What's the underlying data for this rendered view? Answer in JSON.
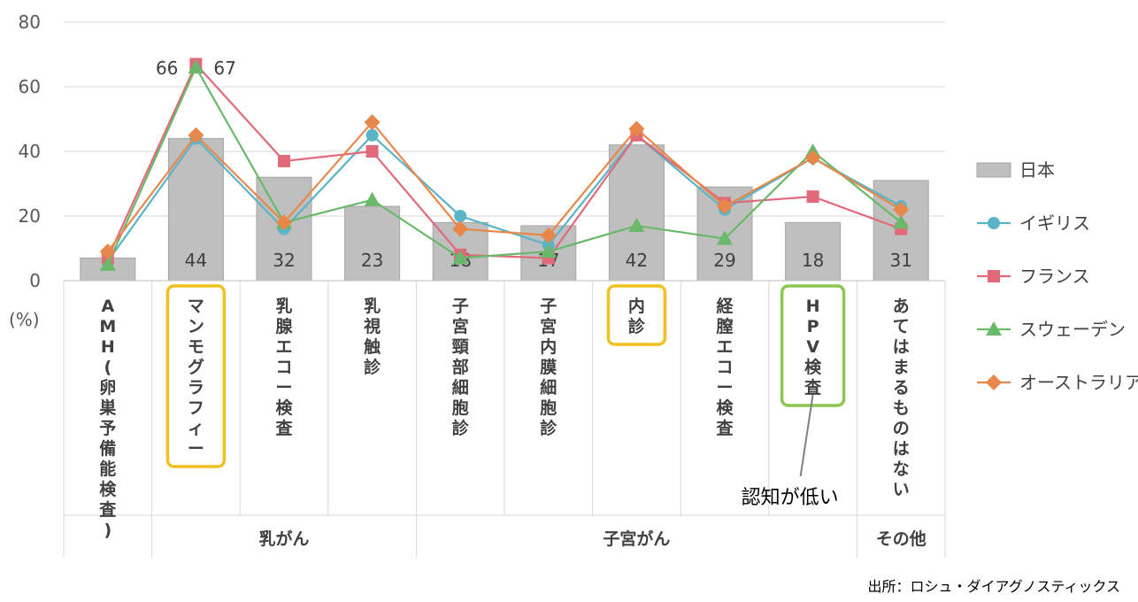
{
  "chart_data": {
    "type": "bar",
    "title": "",
    "ylabel": "(%)",
    "ylim": [
      0,
      80
    ],
    "yticks": [
      0,
      20,
      40,
      60,
      80
    ],
    "categories": [
      "AMH(卵巣予備能検査)",
      "マンモグラフィー",
      "乳腺エコー検査",
      "乳視触診",
      "子宮頸部細胞診",
      "子宮内膜細胞診",
      "内診",
      "経膣エコー検査",
      "HPV検査",
      "あてはまるものはない"
    ],
    "groups": [
      {
        "label": "",
        "span": 1
      },
      {
        "label": "乳がん",
        "span": 3
      },
      {
        "label": "子宮がん",
        "span": 5
      },
      {
        "label": "その他",
        "span": 1
      }
    ],
    "series": [
      {
        "name": "日本",
        "kind": "bar",
        "color": "#bfbfbf",
        "values": [
          7,
          44,
          32,
          23,
          18,
          17,
          42,
          29,
          18,
          31
        ],
        "labels": [
          "7",
          "44",
          "32",
          "23",
          "18",
          "17",
          "42",
          "29",
          "18",
          "31"
        ]
      },
      {
        "name": "イギリス",
        "kind": "line",
        "marker": "circle",
        "color": "#5ab4c8",
        "values": [
          6,
          44,
          16,
          45,
          20,
          11,
          45,
          22,
          38,
          23
        ]
      },
      {
        "name": "フランス",
        "kind": "line",
        "marker": "square",
        "color": "#e06a7a",
        "values": [
          7,
          67,
          37,
          40,
          8,
          7,
          45,
          24,
          26,
          16
        ]
      },
      {
        "name": "スウェーデン",
        "kind": "line",
        "marker": "triangle",
        "color": "#6ab86a",
        "values": [
          5,
          66,
          18,
          25,
          7,
          9,
          17,
          13,
          40,
          18
        ]
      },
      {
        "name": "オーストラリア",
        "kind": "line",
        "marker": "diamond",
        "color": "#e8874a",
        "values": [
          9,
          45,
          18,
          49,
          16,
          14,
          47,
          23,
          38,
          22
        ]
      }
    ],
    "annotations": [
      {
        "text": "66",
        "category": "マンモグラフィー",
        "series": "スウェーデン"
      },
      {
        "text": "67",
        "category": "マンモグラフィー",
        "series": "フランス"
      }
    ],
    "highlight_boxes": [
      {
        "category": "マンモグラフィー",
        "color": "#f2c020"
      },
      {
        "category": "内診",
        "color": "#f2c020"
      },
      {
        "category": "HPV検査",
        "color": "#8cc850"
      }
    ],
    "callout": {
      "text": "認知が低い",
      "category": "HPV検査"
    },
    "legend": "right",
    "grid": true
  },
  "source": "出所：ロシュ・ダイアグノスティックス"
}
